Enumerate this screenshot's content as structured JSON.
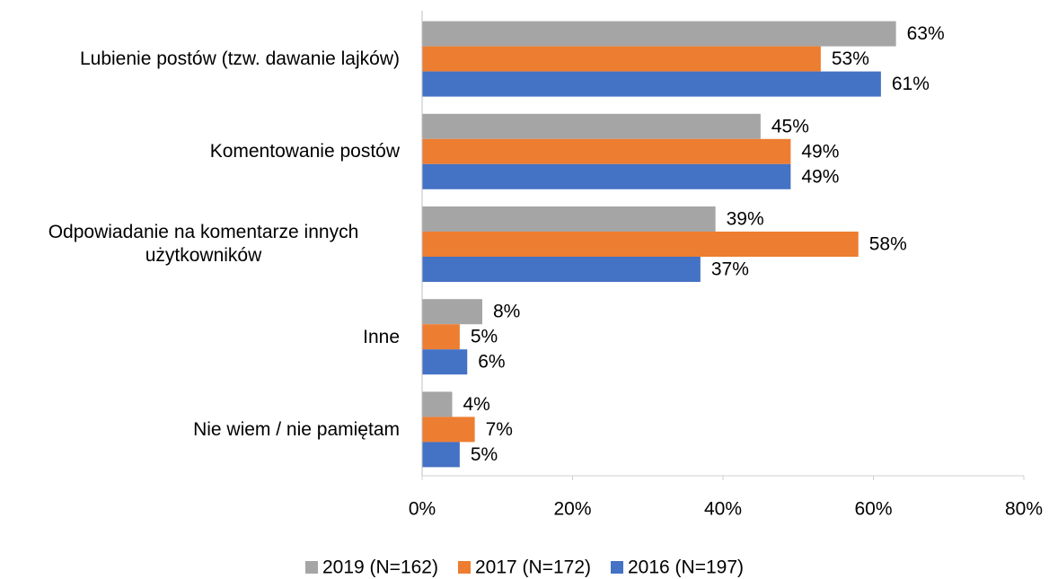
{
  "chart_data": {
    "type": "barh",
    "categories": [
      "Lubienie postów (tzw. dawanie lajków)",
      "Komentowanie postów",
      "Odpowiadanie na komentarze innych użytkowników",
      "Inne",
      "Nie wiem / nie pamiętam"
    ],
    "series": [
      {
        "name": "2019 (N=162)",
        "color": "#a5a5a5",
        "values": [
          63,
          45,
          39,
          8,
          4
        ],
        "value_labels": [
          "63%",
          "45%",
          "39%",
          "8%",
          "4%"
        ]
      },
      {
        "name": "2017 (N=172)",
        "color": "#ed7d31",
        "values": [
          53,
          49,
          58,
          5,
          7
        ],
        "value_labels": [
          "53%",
          "49%",
          "58%",
          "5%",
          "7%"
        ]
      },
      {
        "name": "2016 (N=197)",
        "color": "#4472c4",
        "values": [
          61,
          49,
          37,
          6,
          5
        ],
        "value_labels": [
          "61%",
          "49%",
          "37%",
          "6%",
          "5%"
        ]
      }
    ],
    "xlim": [
      0,
      80
    ],
    "xticks": [
      {
        "value": 0,
        "label": "0%"
      },
      {
        "value": 20,
        "label": "20%"
      },
      {
        "value": 40,
        "label": "40%"
      },
      {
        "value": 60,
        "label": "60%"
      },
      {
        "value": 80,
        "label": "80%"
      }
    ],
    "grid": false,
    "legend": "bottom"
  }
}
